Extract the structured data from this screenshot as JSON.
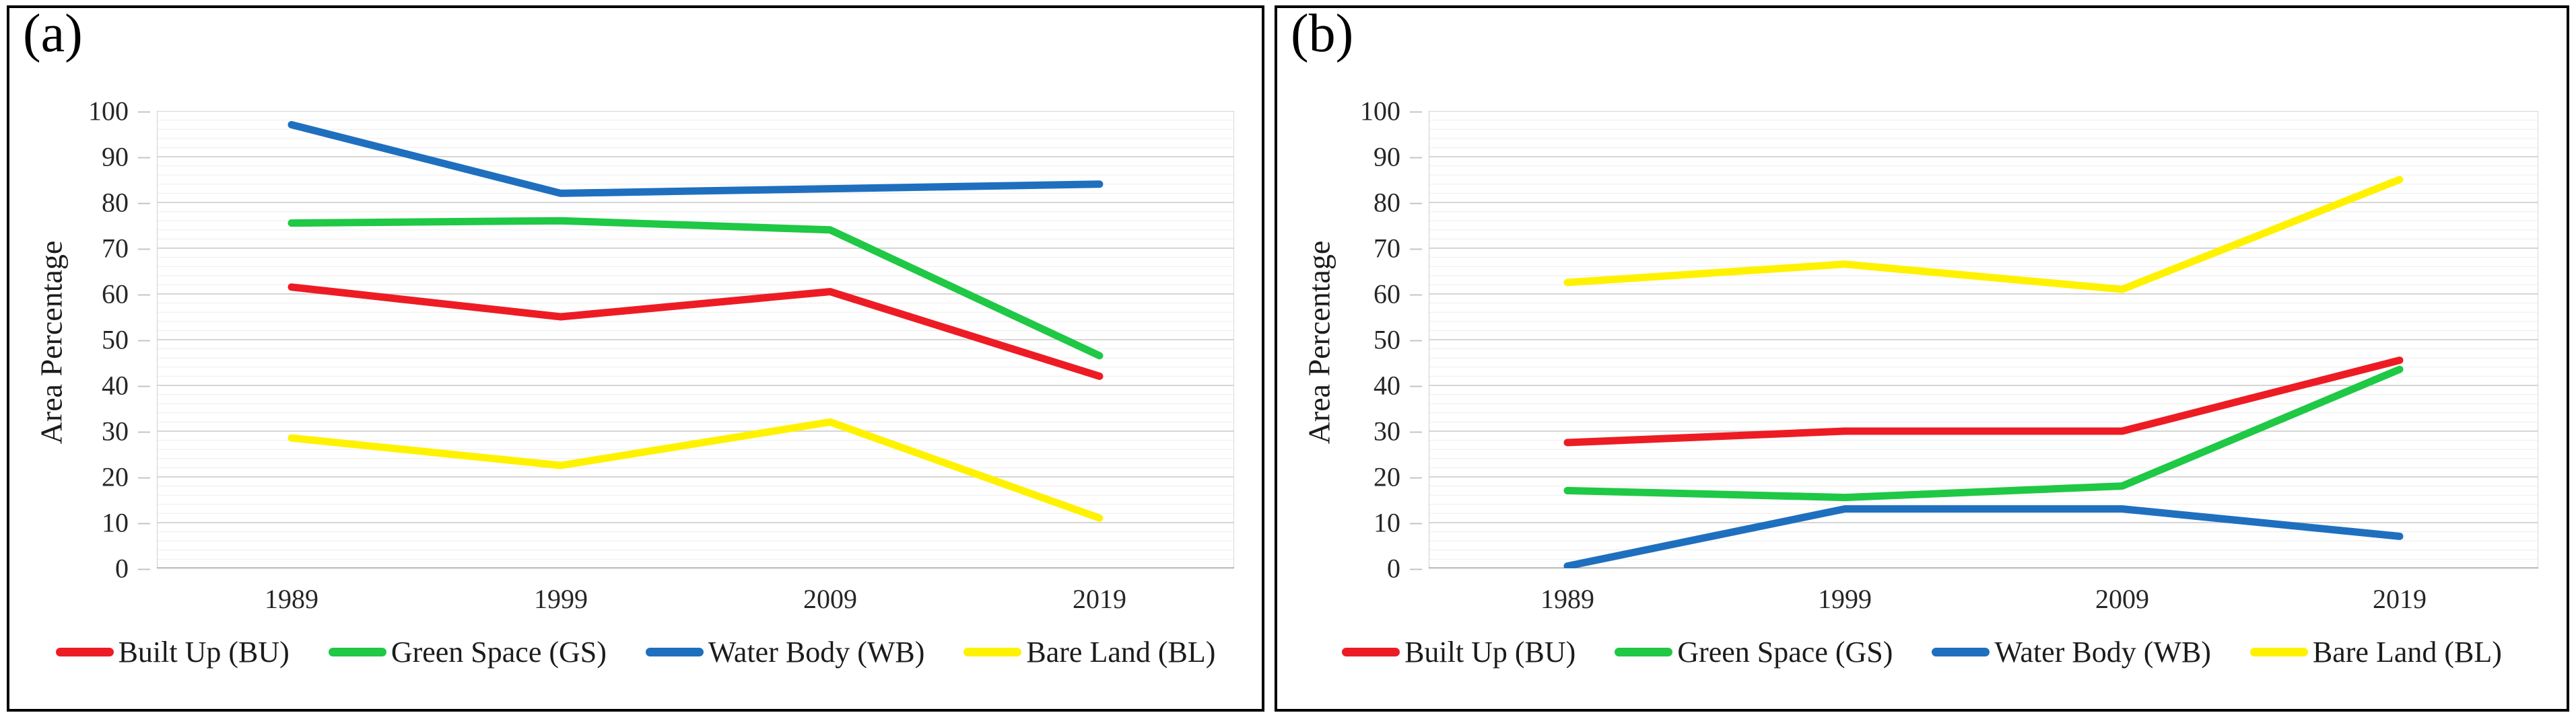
{
  "figure": {
    "background_color": "#ffffff",
    "panel_border_color": "#000000",
    "grid_major_color": "#d6d6d6",
    "grid_minor_color": "#ededed",
    "axis_line_color": "#8f8f8f",
    "plot_frame_color": "#cfcfcf",
    "text_color": "#1c1c1c"
  },
  "chart_data": [
    {
      "type": "line",
      "panel_label": "(a)",
      "title": "",
      "xlabel": "",
      "ylabel": "Area Percentage",
      "x": [
        "1989",
        "1999",
        "2009",
        "2019"
      ],
      "ylim": [
        0,
        100
      ],
      "y_ticks": [
        0,
        10,
        20,
        30,
        40,
        50,
        60,
        70,
        80,
        90,
        100
      ],
      "grid": {
        "horizontal_major_step": 10,
        "horizontal_minor_step": 2,
        "vertical": false
      },
      "legend_position": "bottom",
      "series": [
        {
          "name": "Built Up (BU)",
          "color": "#ed1c24",
          "values": [
            61.5,
            55,
            60.5,
            42
          ]
        },
        {
          "name": "Green Space (GS)",
          "color": "#1fc845",
          "values": [
            75.5,
            76,
            74,
            46.5
          ]
        },
        {
          "name": "Water Body (WB)",
          "color": "#1f6fbf",
          "values": [
            97,
            82,
            83,
            84
          ]
        },
        {
          "name": "Bare Land (BL)",
          "color": "#fff200",
          "values": [
            28.5,
            22.5,
            32,
            11
          ]
        }
      ]
    },
    {
      "type": "line",
      "panel_label": "(b)",
      "title": "",
      "xlabel": "",
      "ylabel": "Area Percentage",
      "x": [
        "1989",
        "1999",
        "2009",
        "2019"
      ],
      "ylim": [
        0,
        100
      ],
      "y_ticks": [
        0,
        10,
        20,
        30,
        40,
        50,
        60,
        70,
        80,
        90,
        100
      ],
      "grid": {
        "horizontal_major_step": 10,
        "horizontal_minor_step": 2,
        "vertical": false
      },
      "legend_position": "bottom",
      "series": [
        {
          "name": "Built Up (BU)",
          "color": "#ed1c24",
          "values": [
            27.5,
            30,
            30,
            45.5
          ]
        },
        {
          "name": "Green Space (GS)",
          "color": "#1fc845",
          "values": [
            17,
            15.5,
            18,
            43.5
          ]
        },
        {
          "name": "Water Body (WB)",
          "color": "#1f6fbf",
          "values": [
            0.5,
            13,
            13,
            7
          ]
        },
        {
          "name": "Bare Land (BL)",
          "color": "#fff200",
          "values": [
            62.5,
            66.5,
            61,
            85
          ]
        }
      ]
    }
  ]
}
